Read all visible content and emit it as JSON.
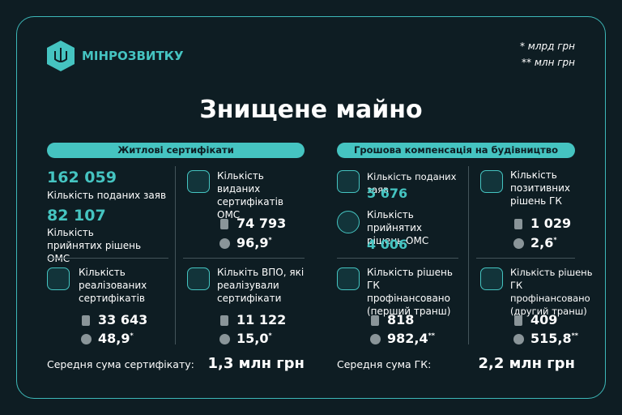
{
  "header": {
    "brand": "МІНРОЗВИТКУ",
    "notes": [
      "* млрд грн",
      "** млн грн"
    ]
  },
  "title": "Знищене майно",
  "left": {
    "heading": "Житлові сертифікати",
    "applications": {
      "value": "162 059",
      "label": "Кількість поданих заяв"
    },
    "decisions": {
      "value": "82 107",
      "label": "Кількість прийнятих рішень ОМС"
    },
    "issued": {
      "label": "Кількість виданих сертифікатів ОМС",
      "count": "74 793",
      "sum": "96,9",
      "sum_mark": "*"
    },
    "realized": {
      "label": "Кількість реалізованих сертифікатів",
      "count": "33 643",
      "sum": "48,9",
      "sum_mark": "*"
    },
    "idp": {
      "label": "Кількіть ВПО, які реалізували сертифікати",
      "count": "11 122",
      "sum": "15,0",
      "sum_mark": "*"
    },
    "average": {
      "label": "Середня сума сертифікату:",
      "value": "1,3 млн грн"
    }
  },
  "right": {
    "heading": "Грошова компенсація на будівництво",
    "applications": {
      "label": "Кількість поданих заяв",
      "value": "5 676"
    },
    "decisions": {
      "label": "Кількість прийнятих рішень ОМС",
      "value": "4 006"
    },
    "positive": {
      "label": "Кількість позитивних рішень ГК",
      "count": "1 029",
      "sum": "2,6",
      "sum_mark": "*"
    },
    "first": {
      "label": "Кількість рішень ГК профінансовано (перший транш)",
      "count": "818",
      "sum": "982,4",
      "sum_mark": "**"
    },
    "second": {
      "label": "Кількість рішень ГК профінансовано (другий транш)",
      "count": "409",
      "sum": "515,8",
      "sum_mark": "**"
    },
    "average": {
      "label": "Середня сума ГК:",
      "value": "2,2 млн грн"
    }
  }
}
